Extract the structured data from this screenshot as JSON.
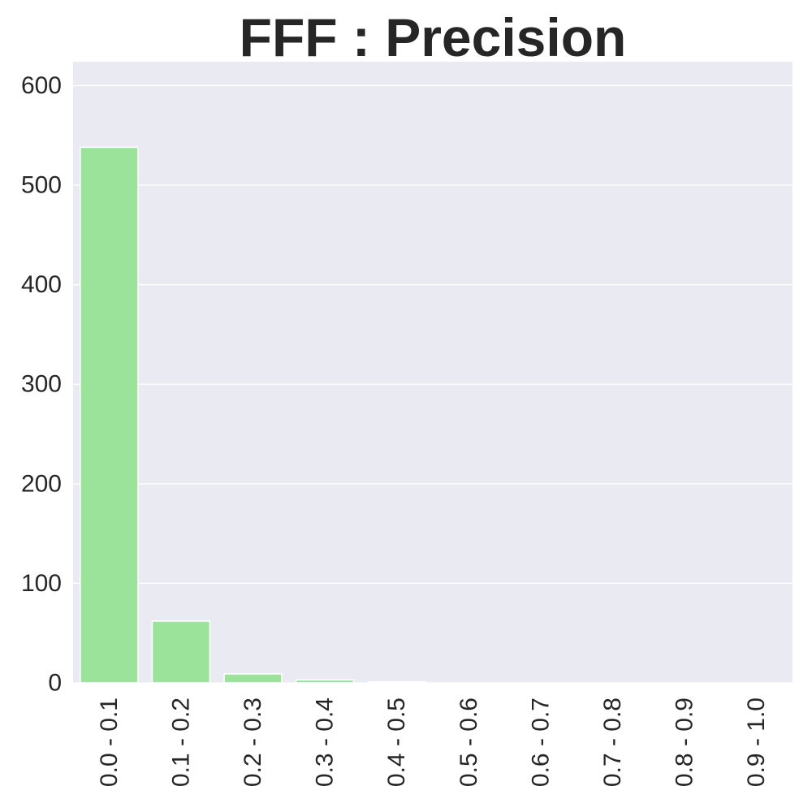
{
  "chart_data": {
    "type": "bar",
    "title": "FFF : Precision",
    "xlabel": "",
    "ylabel": "",
    "categories": [
      "0.0 - 0.1",
      "0.1 - 0.2",
      "0.2 - 0.3",
      "0.3 - 0.4",
      "0.4 - 0.5",
      "0.5 - 0.6",
      "0.6 - 0.7",
      "0.7 - 0.8",
      "0.8 - 0.9",
      "0.9 - 1.0"
    ],
    "values": [
      538,
      62,
      9,
      3,
      1,
      0,
      0,
      0,
      0,
      0
    ],
    "ylim": [
      0,
      624
    ],
    "yticks": [
      0,
      100,
      200,
      300,
      400,
      500,
      600
    ],
    "grid": true,
    "style": {
      "bar_color": "#9be39b",
      "background_color": "#eaeaf2",
      "grid_color": "#ffffff"
    }
  }
}
